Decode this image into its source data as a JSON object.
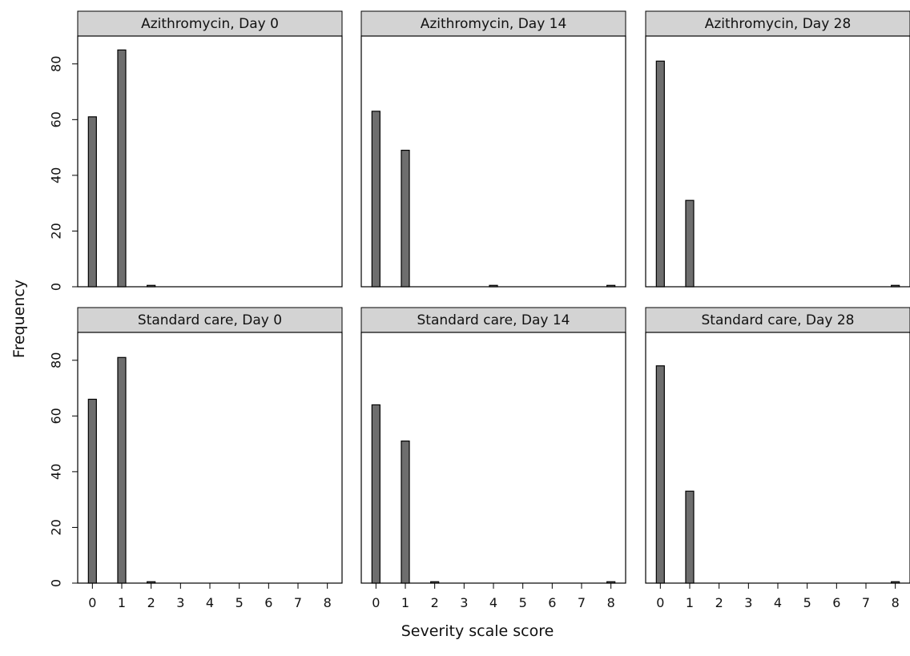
{
  "chart_data": {
    "type": "bar",
    "layout": "facet-grid-2x3",
    "xlabel": "Severity scale score",
    "ylabel": "Frequency",
    "x_ticks": [
      "0",
      "1",
      "2",
      "3",
      "4",
      "5",
      "6",
      "7",
      "8"
    ],
    "y_ticks": [
      "0",
      "20",
      "40",
      "60",
      "80"
    ],
    "ylim": [
      0,
      90
    ],
    "xlim": [
      -0.5,
      8.5
    ],
    "colors": {
      "bar_fill": "#6e6e6e",
      "bar_stroke": "#000000",
      "strip_fill": "#d3d3d3",
      "panel_stroke": "#000000"
    },
    "panels": [
      {
        "title": "Azithromycin, Day 0",
        "values": [
          61,
          85,
          0.5,
          0,
          0,
          0,
          0,
          0,
          0
        ]
      },
      {
        "title": "Azithromycin, Day 14",
        "values": [
          63,
          49,
          0,
          0,
          0.5,
          0,
          0,
          0,
          0.5
        ]
      },
      {
        "title": "Azithromycin, Day 28",
        "values": [
          81,
          31,
          0,
          0,
          0,
          0,
          0,
          0,
          0.5
        ]
      },
      {
        "title": "Standard care, Day 0",
        "values": [
          66,
          81,
          0.5,
          0,
          0,
          0,
          0,
          0,
          0
        ]
      },
      {
        "title": "Standard care, Day 14",
        "values": [
          64,
          51,
          0.5,
          0,
          0,
          0,
          0,
          0,
          0.5
        ]
      },
      {
        "title": "Standard care, Day 28",
        "values": [
          78,
          33,
          0,
          0,
          0,
          0,
          0,
          0,
          0.5
        ]
      }
    ]
  }
}
